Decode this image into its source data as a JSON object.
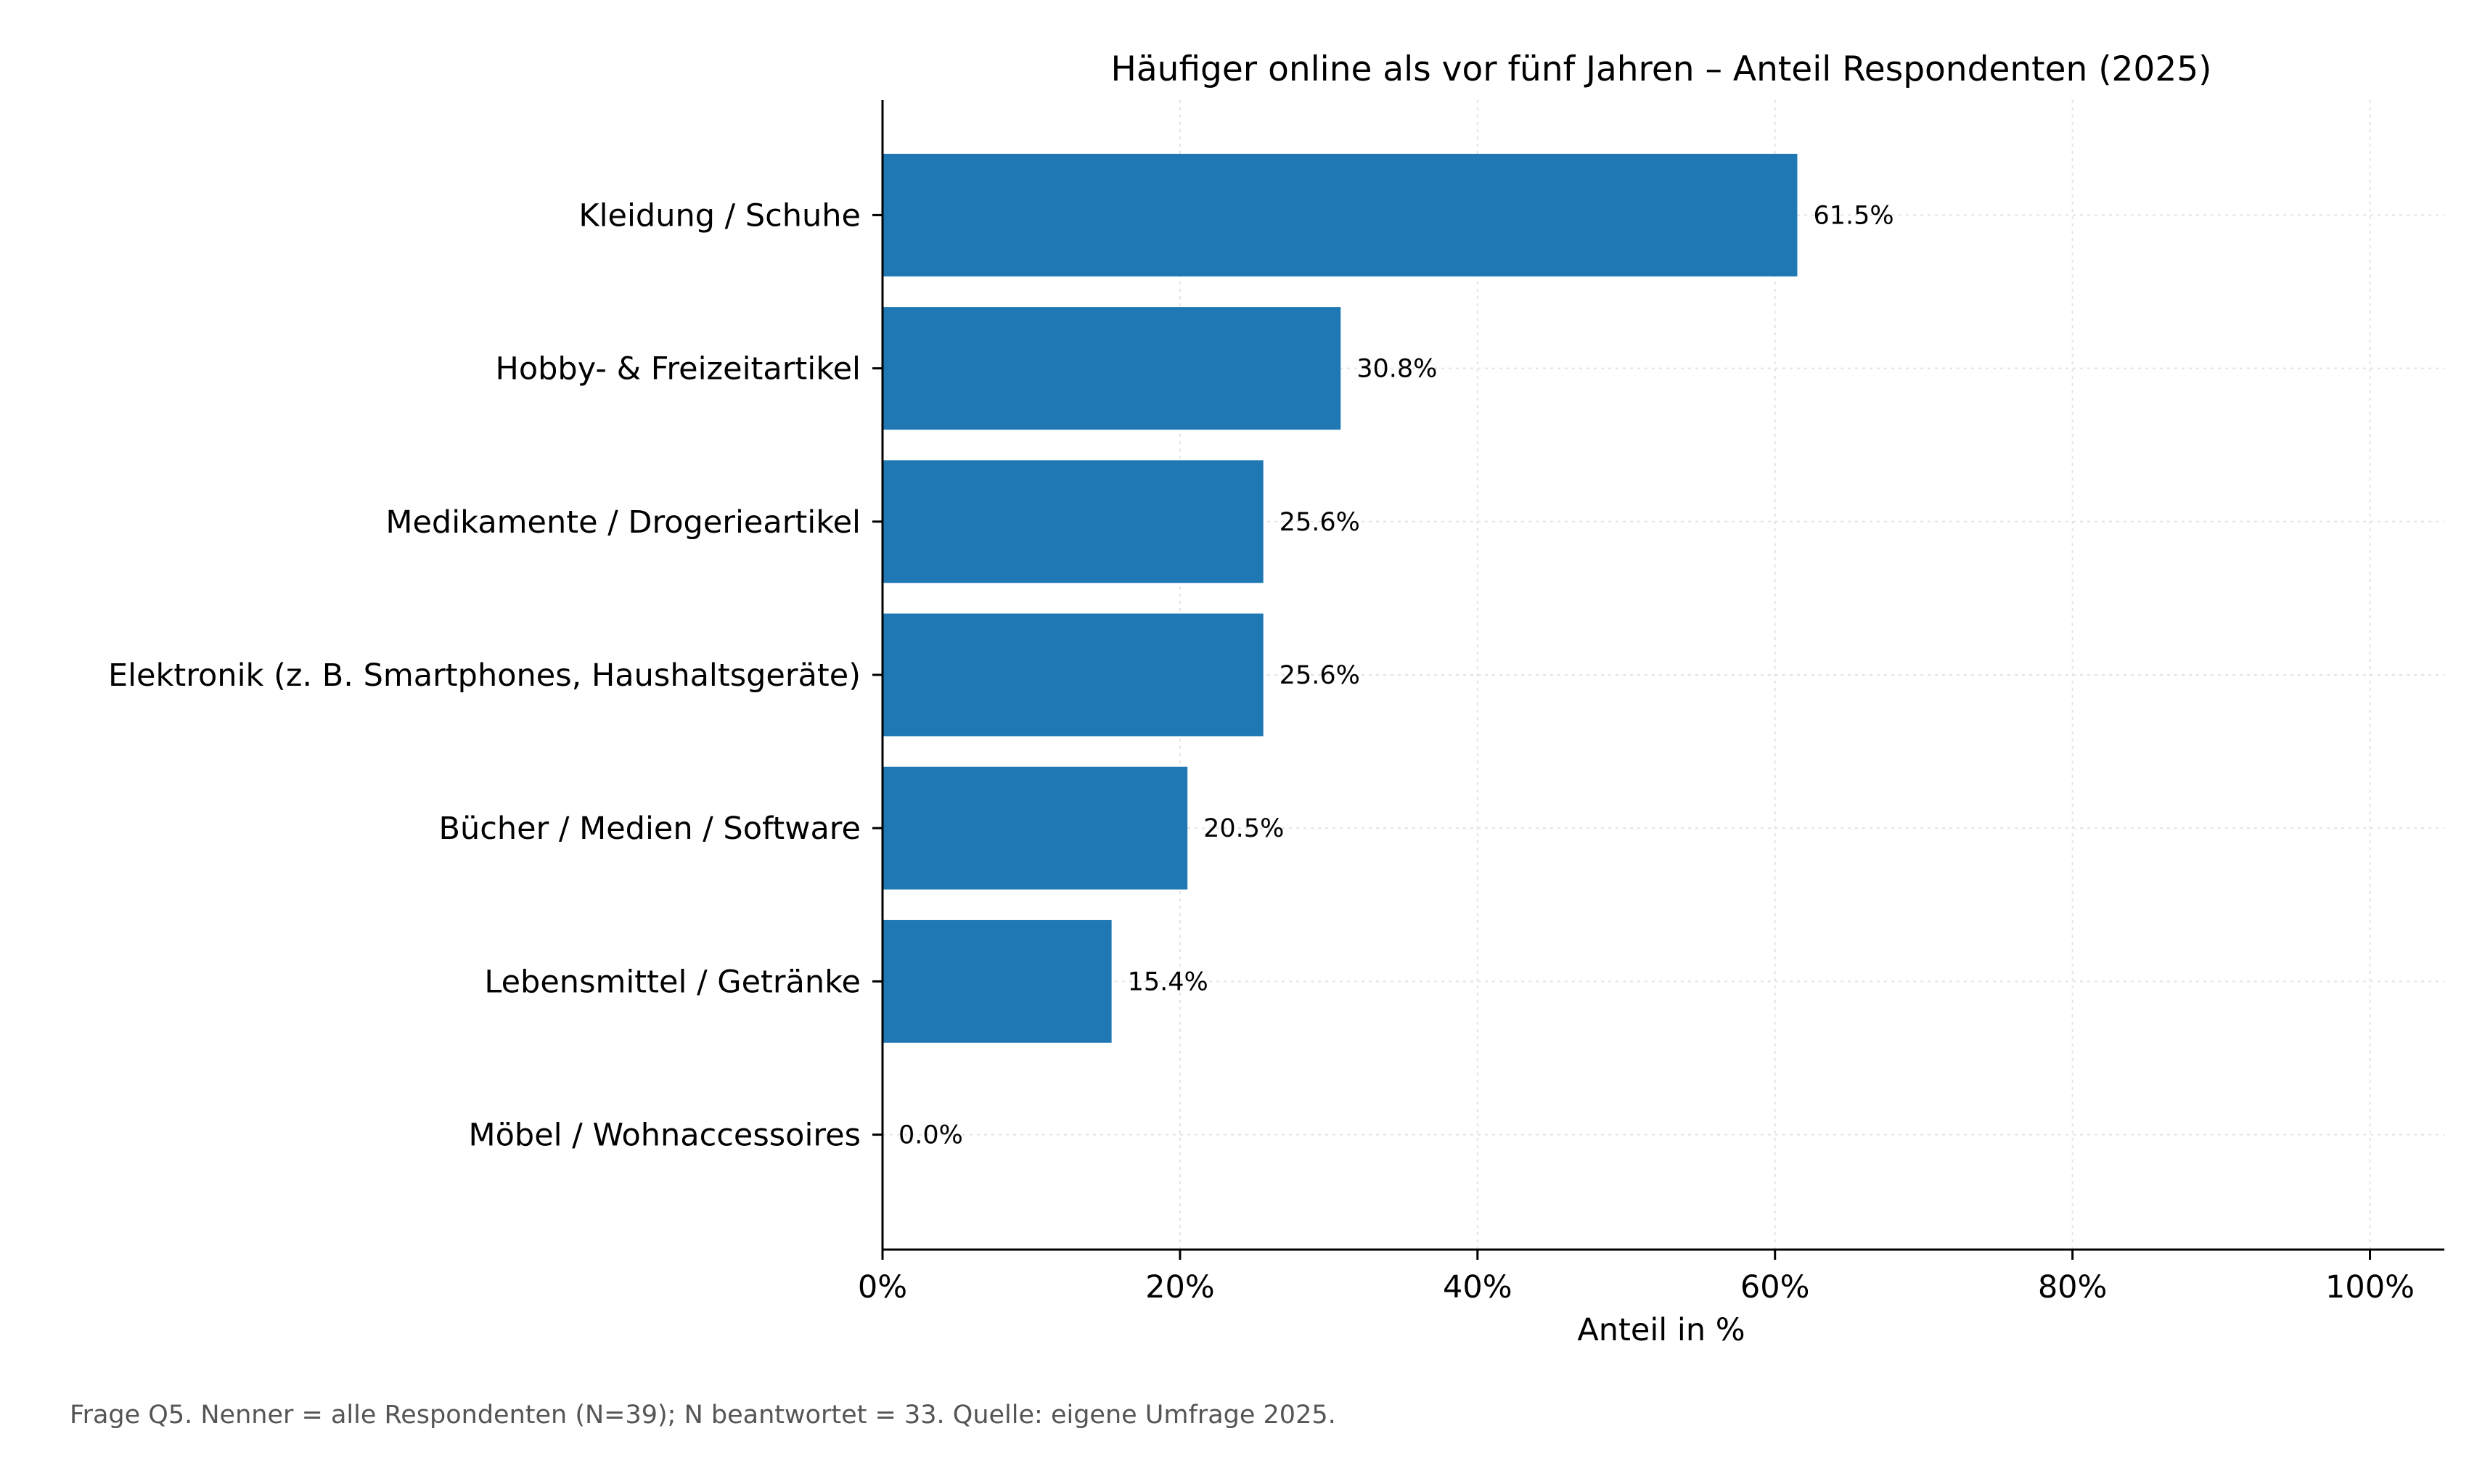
{
  "chart_data": {
    "type": "bar",
    "orientation": "horizontal",
    "title": "Häufiger online als vor fünf Jahren – Anteil Respondenten (2025)",
    "xlabel": "Anteil in %",
    "ylabel": "",
    "categories": [
      "Kleidung / Schuhe",
      "Hobby- & Freizeitartikel",
      "Medikamente / Drogerieartikel",
      "Elektronik (z. B. Smartphones, Haushaltsgeräte)",
      "Bücher / Medien / Software",
      "Lebensmittel / Getränke",
      "Möbel / Wohnaccessoires"
    ],
    "values": [
      61.5,
      30.8,
      25.6,
      25.6,
      20.5,
      15.4,
      0.0
    ],
    "value_labels": [
      "61.5%",
      "30.8%",
      "25.6%",
      "25.6%",
      "20.5%",
      "15.4%",
      "0.0%"
    ],
    "xlim": [
      0,
      105
    ],
    "xticks": [
      0,
      20,
      40,
      60,
      80,
      100
    ],
    "xtick_labels": [
      "0%",
      "20%",
      "40%",
      "60%",
      "80%",
      "100%"
    ],
    "grid": true,
    "bar_color": "#1f77b4",
    "footnote": "Frage Q5. Nenner = alle Respondenten (N=39); N beantwortet = 33. Quelle: eigene Umfrage 2025."
  }
}
